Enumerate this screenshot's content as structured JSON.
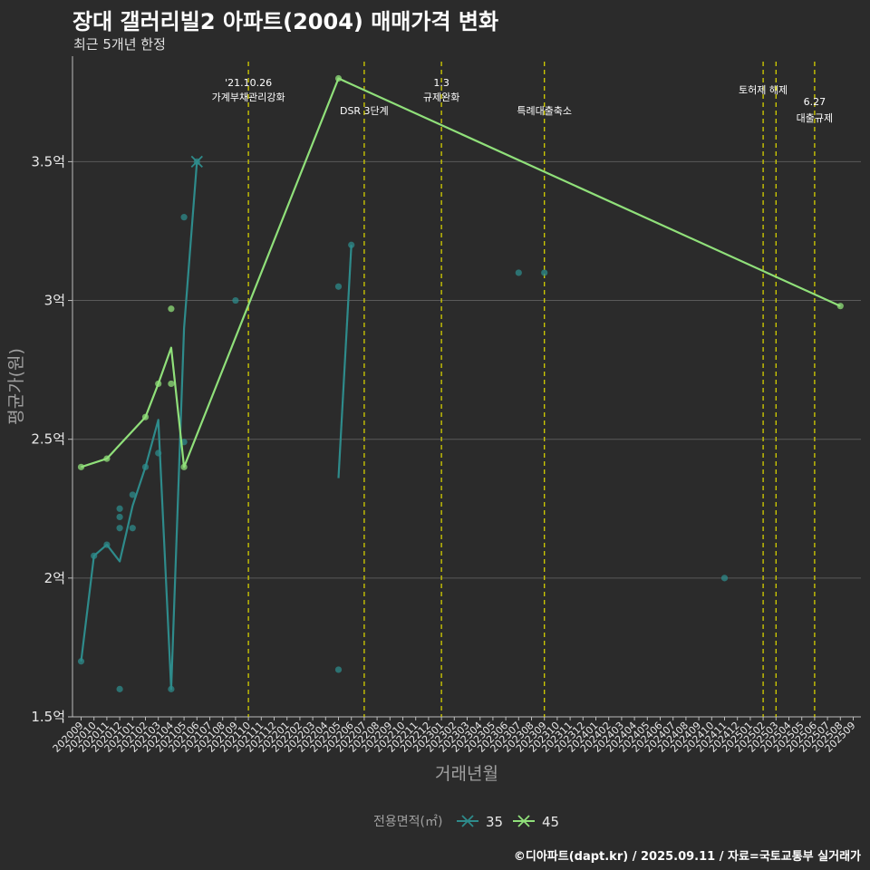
{
  "header": {
    "title": "장대 갤러리빌2 아파트(2004) 매매가격 변화",
    "subtitle": "최근 5개년 한정"
  },
  "footer": {
    "caption": "©디아파트(dapt.kr) / 2025.09.11 / 자료=국토교통부 실거래가"
  },
  "colors": {
    "background": "#2b2b2b",
    "grid": "#5a5a5a",
    "series_35": "#2e8b8b",
    "series_45": "#90e07a",
    "event_line": "#d4d000",
    "text": "#e8e8e8",
    "axis_title": "#a0a0a0"
  },
  "chart_data": {
    "type": "line",
    "xlabel": "거래년월",
    "ylabel": "평균가(원)",
    "categories": [
      "202009",
      "202010",
      "202011",
      "202012",
      "202101",
      "202102",
      "202103",
      "202104",
      "202105",
      "202106",
      "202107",
      "202108",
      "202109",
      "202110",
      "202111",
      "202112",
      "202201",
      "202202",
      "202203",
      "202204",
      "202205",
      "202206",
      "202207",
      "202208",
      "202209",
      "202210",
      "202211",
      "202212",
      "202301",
      "202302",
      "202303",
      "202304",
      "202305",
      "202306",
      "202307",
      "202308",
      "202309",
      "202310",
      "202311",
      "202312",
      "202401",
      "202402",
      "202403",
      "202404",
      "202405",
      "202406",
      "202407",
      "202408",
      "202409",
      "202410",
      "202411",
      "202412",
      "202501",
      "202502",
      "202503",
      "202504",
      "202505",
      "202506",
      "202507",
      "202508",
      "202509"
    ],
    "yticks": [
      {
        "value": 1.5,
        "label": "1.5억"
      },
      {
        "value": 2.0,
        "label": "2억"
      },
      {
        "value": 2.5,
        "label": "2.5억"
      },
      {
        "value": 3.0,
        "label": "3억"
      },
      {
        "value": 3.5,
        "label": "3.5억"
      }
    ],
    "ylim": [
      1.5,
      3.88
    ],
    "grid": true,
    "legend": {
      "title": "전용면적(㎡)",
      "placement": "bottom",
      "entries": [
        {
          "key": "35",
          "label": "35"
        },
        {
          "key": "45",
          "label": "45"
        }
      ]
    },
    "events": [
      {
        "x": "202110",
        "label_lines": [
          "'21.10.26",
          "가계부채관리강화"
        ]
      },
      {
        "x": "202207",
        "label_lines": [
          "DSR 3단계"
        ]
      },
      {
        "x": "202301",
        "label_lines": [
          "1.3",
          "규제완화"
        ]
      },
      {
        "x": "202309",
        "label_lines": [
          "특례대출축소"
        ]
      },
      {
        "x": "202502",
        "label_lines": [
          "토허제 해제"
        ]
      },
      {
        "x": "202503",
        "label_lines": []
      },
      {
        "x": "202506",
        "label_lines": [
          "6.27",
          "대출규제"
        ]
      }
    ],
    "series": [
      {
        "name": "35",
        "line": [
          {
            "x": "202009",
            "y": 1.7
          },
          {
            "x": "202010",
            "y": 2.08
          },
          {
            "x": "202011",
            "y": 2.12
          },
          {
            "x": "202012",
            "y": 2.06
          },
          {
            "x": "202101",
            "y": 2.26
          },
          {
            "x": "202102",
            "y": 2.4
          },
          {
            "x": "202103",
            "y": 2.57
          },
          {
            "x": "202104",
            "y": 1.6
          },
          {
            "x": "202105",
            "y": 2.9
          },
          {
            "x": "202106",
            "y": 3.5
          },
          {
            "x": "__gap__",
            "y": null
          },
          {
            "x": "202205",
            "y": 2.36
          },
          {
            "x": "202206",
            "y": 3.2
          }
        ],
        "points": [
          {
            "x": "202009",
            "y": 1.7
          },
          {
            "x": "202010",
            "y": 2.08
          },
          {
            "x": "202011",
            "y": 2.12
          },
          {
            "x": "202012",
            "y": 2.25
          },
          {
            "x": "202012",
            "y": 2.22
          },
          {
            "x": "202012",
            "y": 2.18
          },
          {
            "x": "202012",
            "y": 1.6
          },
          {
            "x": "202101",
            "y": 2.3
          },
          {
            "x": "202101",
            "y": 2.18
          },
          {
            "x": "202102",
            "y": 2.4
          },
          {
            "x": "202103",
            "y": 2.45
          },
          {
            "x": "202104",
            "y": 1.6
          },
          {
            "x": "202105",
            "y": 3.3
          },
          {
            "x": "202105",
            "y": 2.49
          },
          {
            "x": "202106",
            "y": 3.5
          },
          {
            "x": "202109",
            "y": 3.0
          },
          {
            "x": "202205",
            "y": 3.05
          },
          {
            "x": "202205",
            "y": 1.67
          },
          {
            "x": "202206",
            "y": 3.2
          },
          {
            "x": "202307",
            "y": 3.1
          },
          {
            "x": "202309",
            "y": 3.1
          },
          {
            "x": "202411",
            "y": 2.0
          }
        ]
      },
      {
        "name": "45",
        "line": [
          {
            "x": "202009",
            "y": 2.4
          },
          {
            "x": "202011",
            "y": 2.43
          },
          {
            "x": "202102",
            "y": 2.58
          },
          {
            "x": "202103",
            "y": 2.7
          },
          {
            "x": "202104",
            "y": 2.83
          },
          {
            "x": "202105",
            "y": 2.4
          },
          {
            "x": "202205",
            "y": 3.8
          },
          {
            "x": "202508",
            "y": 2.98
          }
        ],
        "points": [
          {
            "x": "202009",
            "y": 2.4
          },
          {
            "x": "202011",
            "y": 2.43
          },
          {
            "x": "202102",
            "y": 2.58
          },
          {
            "x": "202103",
            "y": 2.7
          },
          {
            "x": "202104",
            "y": 2.97
          },
          {
            "x": "202104",
            "y": 2.7
          },
          {
            "x": "202105",
            "y": 2.4
          },
          {
            "x": "202205",
            "y": 3.8
          },
          {
            "x": "202508",
            "y": 2.98
          }
        ]
      }
    ]
  }
}
